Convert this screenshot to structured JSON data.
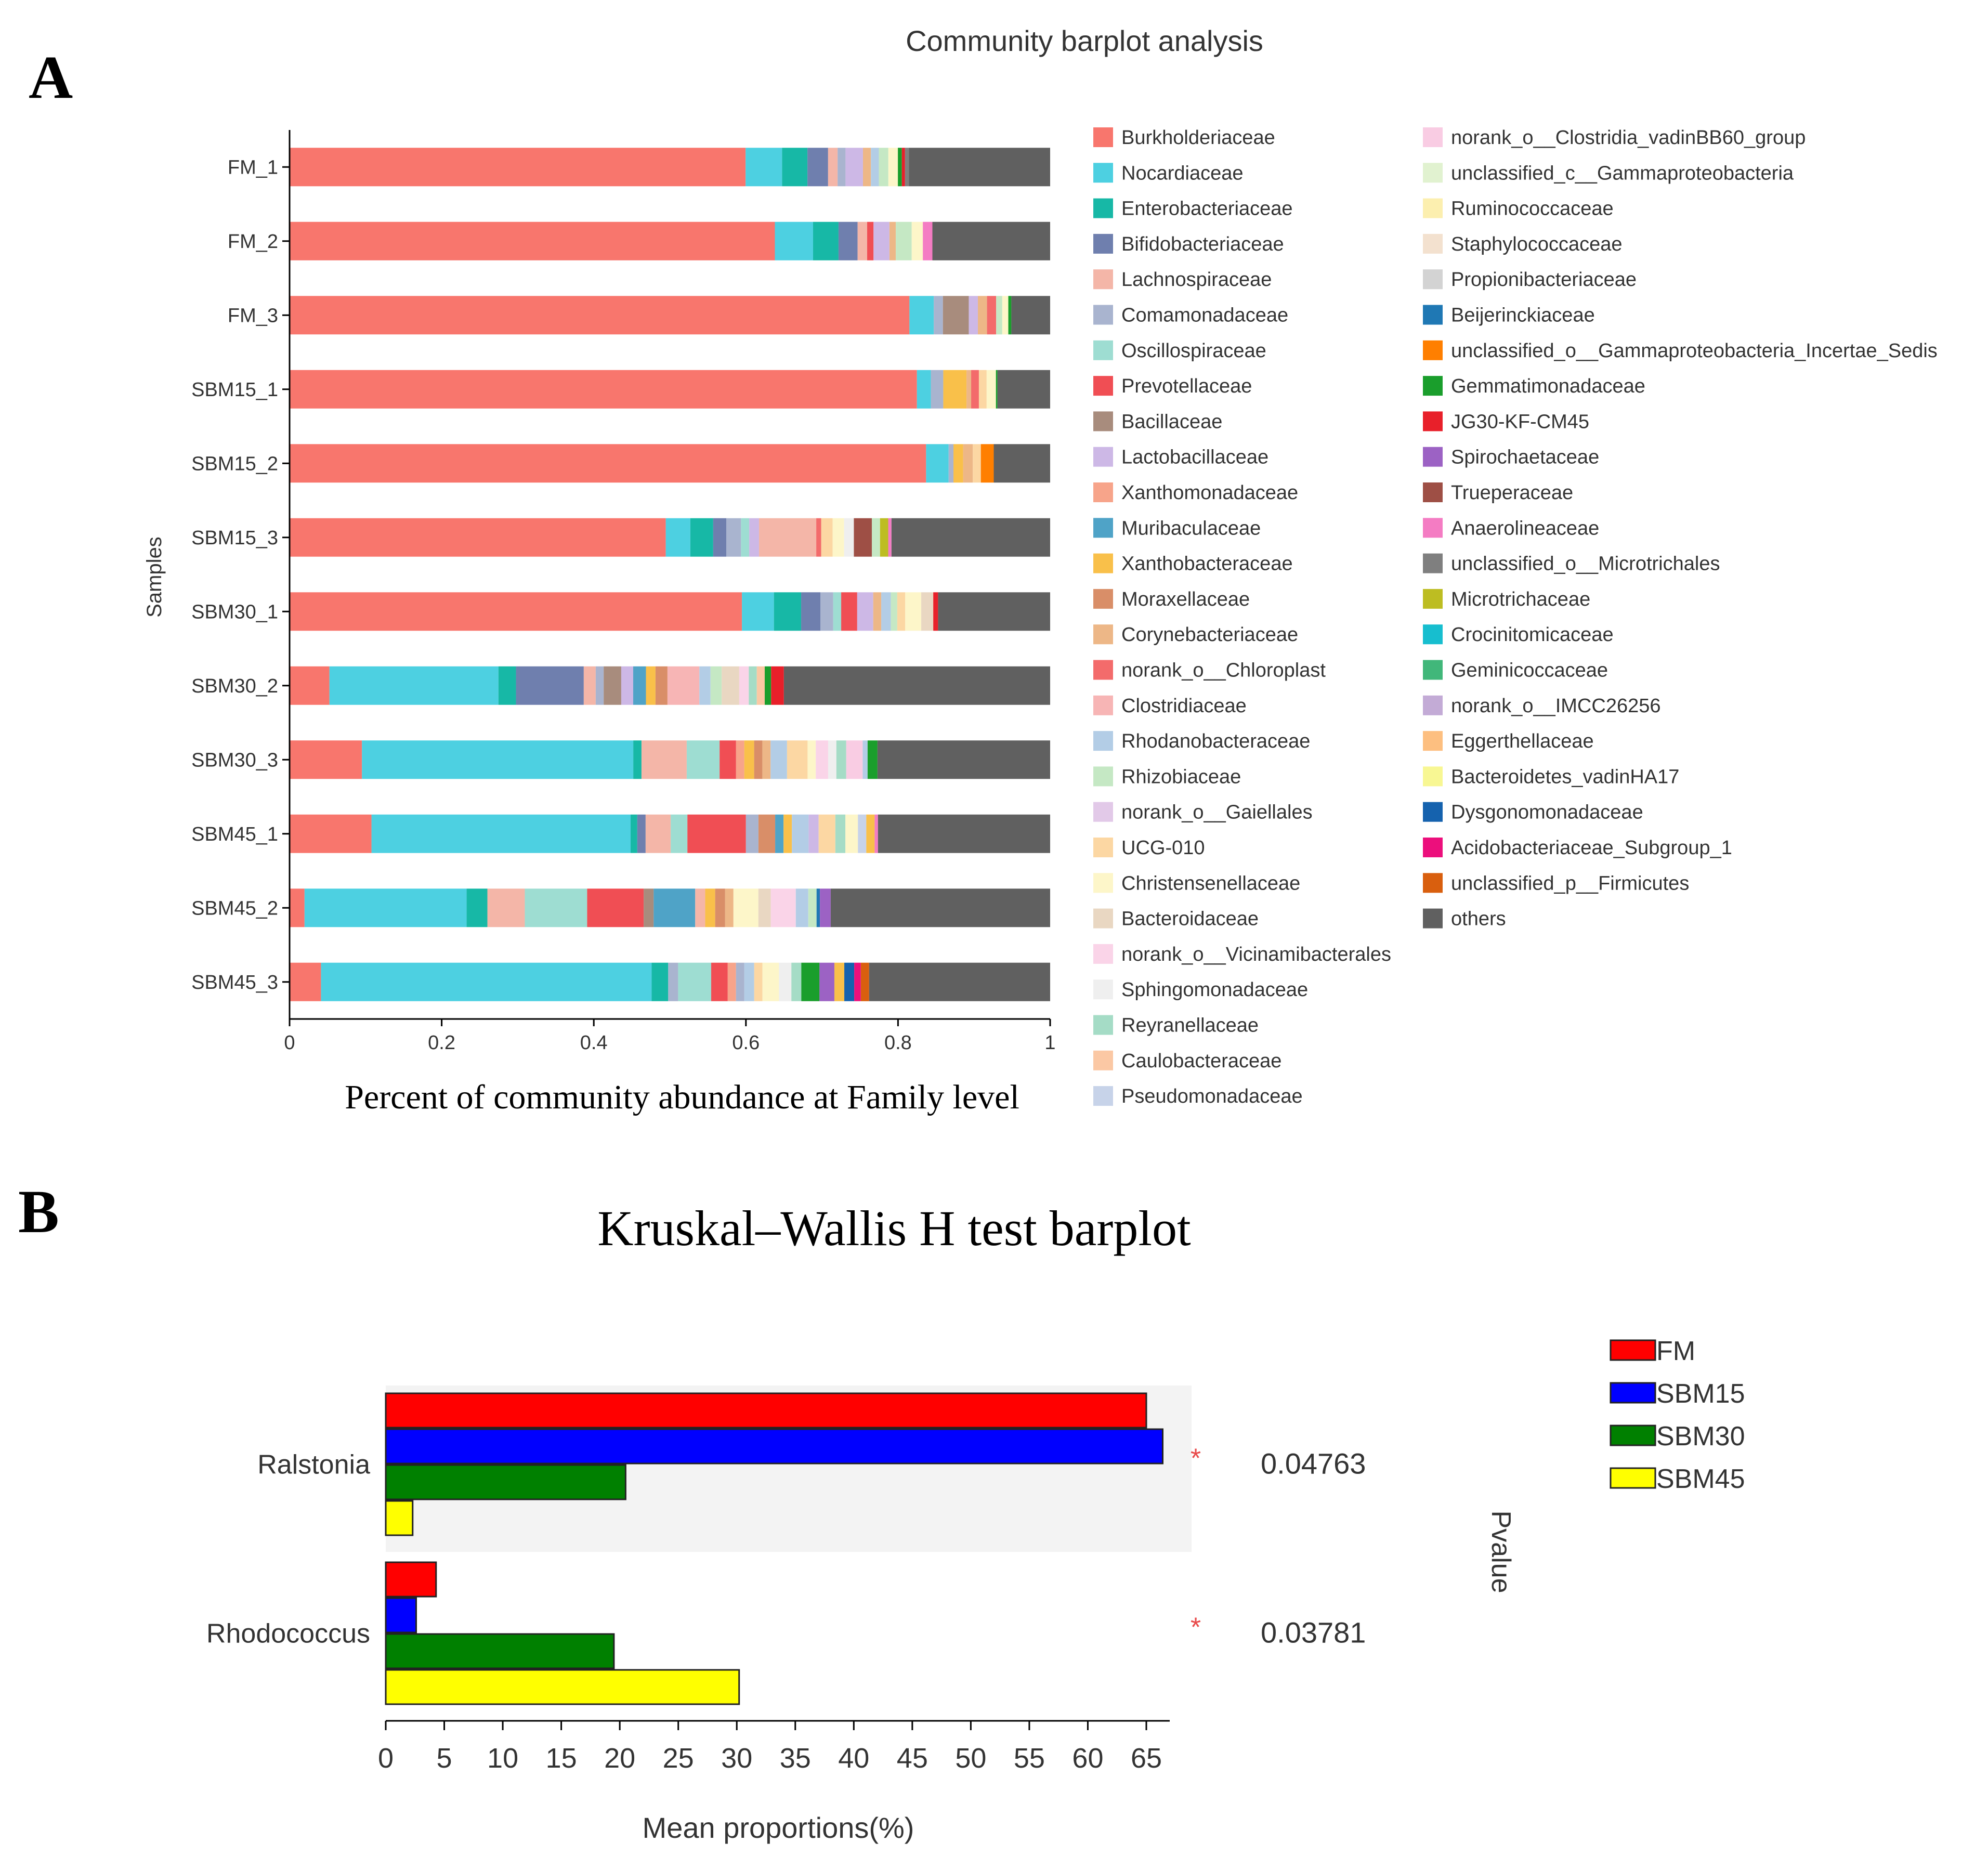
{
  "panel_a": {
    "letter": "A",
    "chart_data": {
      "type": "bar",
      "orientation": "horizontal",
      "stacked": true,
      "title": "Community barplot analysis",
      "xlabel": "Percent of community abundance at Family level",
      "ylabel": "Samples",
      "xlim": [
        0,
        1
      ],
      "xticks": [
        "0",
        "0.2",
        "0.4",
        "0.6",
        "0.8",
        "1"
      ],
      "categories": [
        "FM_1",
        "FM_2",
        "FM_3",
        "SBM15_1",
        "SBM15_2",
        "SBM15_3",
        "SBM30_1",
        "SBM30_2",
        "SBM30_3",
        "SBM45_1",
        "SBM45_2",
        "SBM45_3"
      ],
      "legend": [
        {
          "name": "Burkholderiaceae",
          "color": "#F8766D"
        },
        {
          "name": "Nocardiaceae",
          "color": "#4DD0E1"
        },
        {
          "name": "Enterobacteriaceae",
          "color": "#17B8A6"
        },
        {
          "name": "Bifidobacteriaceae",
          "color": "#6F7FAE"
        },
        {
          "name": "Lachnospiraceae",
          "color": "#F4B6A8"
        },
        {
          "name": "Comamonadaceae",
          "color": "#A9B4CF"
        },
        {
          "name": "Oscillospiraceae",
          "color": "#9EDDD2"
        },
        {
          "name": "Prevotellaceae",
          "color": "#F04E54"
        },
        {
          "name": "Bacillaceae",
          "color": "#A88C7D"
        },
        {
          "name": "Lactobacillaceae",
          "color": "#CDB8E6"
        },
        {
          "name": "Xanthomonadaceae",
          "color": "#F7A48A"
        },
        {
          "name": "Muribaculaceae",
          "color": "#4FA3C7"
        },
        {
          "name": "Xanthobacteraceae",
          "color": "#F9C04A"
        },
        {
          "name": "Moraxellaceae",
          "color": "#D98E68"
        },
        {
          "name": "Corynebacteriaceae",
          "color": "#EDB787"
        },
        {
          "name": "norank_o__Chloroplast",
          "color": "#F36B6B"
        },
        {
          "name": "Clostridiaceae",
          "color": "#F7B5B5"
        },
        {
          "name": "Rhodanobacteraceae",
          "color": "#B3CDE6"
        },
        {
          "name": "Rhizobiaceae",
          "color": "#C5E8C4"
        },
        {
          "name": "norank_o__Gaiellales",
          "color": "#E2C9E8"
        },
        {
          "name": "UCG-010",
          "color": "#FCD7A3"
        },
        {
          "name": "Christensenellaceae",
          "color": "#FDF6C9"
        },
        {
          "name": "Bacteroidaceae",
          "color": "#E9D7C2"
        },
        {
          "name": "norank_o__Vicinamibacterales",
          "color": "#FAD4E8"
        },
        {
          "name": "Sphingomonadaceae",
          "color": "#EFEFEF"
        },
        {
          "name": "Reyranellaceae",
          "color": "#A5DCC6"
        },
        {
          "name": "Caulobacteraceae",
          "color": "#FBC8A4"
        },
        {
          "name": "Pseudomonadaceae",
          "color": "#C7D3E9"
        },
        {
          "name": "norank_o__Clostridia_vadinBB60_group",
          "color": "#F9CCE3"
        },
        {
          "name": "unclassified_c__Gammaproteobacteria",
          "color": "#E1F2D0"
        },
        {
          "name": "Ruminococcaceae",
          "color": "#FCEFAF"
        },
        {
          "name": "Staphylococcaceae",
          "color": "#F3E1CF"
        },
        {
          "name": "Propionibacteriaceae",
          "color": "#D3D3D3"
        },
        {
          "name": "Beijerinckiaceae",
          "color": "#1F78B4"
        },
        {
          "name": "unclassified_o__Gammaproteobacteria_Incertae_Sedis",
          "color": "#FF7F00"
        },
        {
          "name": "Gemmatimonadaceae",
          "color": "#1A9E2C"
        },
        {
          "name": "JG30-KF-CM45",
          "color": "#E8202A"
        },
        {
          "name": "Spirochaetaceae",
          "color": "#9C62C4"
        },
        {
          "name": "Trueperaceae",
          "color": "#9E4F45"
        },
        {
          "name": "Anaerolineaceae",
          "color": "#F47CC3"
        },
        {
          "name": "unclassified_o__Microtrichales",
          "color": "#7F7F7F"
        },
        {
          "name": "Microtrichaceae",
          "color": "#BDBD22"
        },
        {
          "name": "Crocinitomicaceae",
          "color": "#17BECF"
        },
        {
          "name": "Geminicoccaceae",
          "color": "#41B77A"
        },
        {
          "name": "norank_o__IMCC26256",
          "color": "#C3ABD6"
        },
        {
          "name": "Eggerthellaceae",
          "color": "#FDBF80"
        },
        {
          "name": "Bacteroidetes_vadinHA17",
          "color": "#F8F793"
        },
        {
          "name": "Dysgonomonadaceae",
          "color": "#1562AE"
        },
        {
          "name": "Acidobacteriaceae_Subgroup_1",
          "color": "#EC0F7C"
        },
        {
          "name": "unclassified_p__Firmicutes",
          "color": "#D95F0E"
        },
        {
          "name": "others",
          "color": "#606060"
        }
      ],
      "stacks": [
        [
          [
            0,
            0.575
          ],
          [
            1,
            0.046
          ],
          [
            2,
            0.032
          ],
          [
            3,
            0.026
          ],
          [
            4,
            0.012
          ],
          [
            5,
            0.01
          ],
          [
            9,
            0.022
          ],
          [
            14,
            0.01
          ],
          [
            17,
            0.01
          ],
          [
            18,
            0.012
          ],
          [
            21,
            0.012
          ],
          [
            35,
            0.005
          ],
          [
            36,
            0.004
          ],
          [
            40,
            0.005
          ],
          [
            50,
            0.178
          ]
        ],
        [
          [
            0,
            0.61
          ],
          [
            1,
            0.048
          ],
          [
            2,
            0.032
          ],
          [
            3,
            0.024
          ],
          [
            4,
            0.012
          ],
          [
            7,
            0.008
          ],
          [
            9,
            0.02
          ],
          [
            14,
            0.008
          ],
          [
            18,
            0.02
          ],
          [
            21,
            0.014
          ],
          [
            39,
            0.012
          ],
          [
            50,
            0.148
          ]
        ],
        [
          [
            0,
            0.815
          ],
          [
            1,
            0.032
          ],
          [
            5,
            0.012
          ],
          [
            8,
            0.034
          ],
          [
            9,
            0.012
          ],
          [
            14,
            0.012
          ],
          [
            15,
            0.012
          ],
          [
            18,
            0.008
          ],
          [
            21,
            0.008
          ],
          [
            35,
            0.004
          ],
          [
            50,
            0.051
          ]
        ],
        [
          [
            0,
            0.81
          ],
          [
            1,
            0.018
          ],
          [
            5,
            0.016
          ],
          [
            12,
            0.03
          ],
          [
            14,
            0.006
          ],
          [
            15,
            0.01
          ],
          [
            20,
            0.01
          ],
          [
            21,
            0.012
          ],
          [
            35,
            0.002
          ],
          [
            50,
            0.068
          ]
        ],
        [
          [
            0,
            0.79
          ],
          [
            1,
            0.028
          ],
          [
            5,
            0.006
          ],
          [
            12,
            0.012
          ],
          [
            14,
            0.012
          ],
          [
            20,
            0.01
          ],
          [
            34,
            0.016
          ],
          [
            50,
            0.07
          ]
        ],
        [
          [
            0,
            0.46
          ],
          [
            1,
            0.03
          ],
          [
            2,
            0.028
          ],
          [
            3,
            0.016
          ],
          [
            5,
            0.018
          ],
          [
            6,
            0.01
          ],
          [
            9,
            0.012
          ],
          [
            4,
            0.07
          ],
          [
            15,
            0.006
          ],
          [
            20,
            0.014
          ],
          [
            21,
            0.014
          ],
          [
            24,
            0.012
          ],
          [
            38,
            0.022
          ],
          [
            18,
            0.01
          ],
          [
            41,
            0.01
          ],
          [
            39,
            0.004
          ],
          [
            50,
            0.194
          ]
        ],
        [
          [
            0,
            0.565
          ],
          [
            1,
            0.04
          ],
          [
            2,
            0.034
          ],
          [
            3,
            0.024
          ],
          [
            5,
            0.016
          ],
          [
            6,
            0.01
          ],
          [
            7,
            0.02
          ],
          [
            9,
            0.02
          ],
          [
            14,
            0.01
          ],
          [
            17,
            0.012
          ],
          [
            18,
            0.008
          ],
          [
            20,
            0.01
          ],
          [
            21,
            0.02
          ],
          [
            22,
            0.015
          ],
          [
            36,
            0.006
          ],
          [
            50,
            0.14
          ]
        ],
        [
          [
            0,
            0.05
          ],
          [
            1,
            0.212
          ],
          [
            2,
            0.022
          ],
          [
            3,
            0.085
          ],
          [
            4,
            0.015
          ],
          [
            5,
            0.01
          ],
          [
            8,
            0.022
          ],
          [
            9,
            0.015
          ],
          [
            11,
            0.016
          ],
          [
            12,
            0.012
          ],
          [
            13,
            0.015
          ],
          [
            16,
            0.04
          ],
          [
            17,
            0.014
          ],
          [
            18,
            0.014
          ],
          [
            22,
            0.022
          ],
          [
            23,
            0.012
          ],
          [
            25,
            0.01
          ],
          [
            26,
            0.01
          ],
          [
            35,
            0.008
          ],
          [
            36,
            0.016
          ],
          [
            50,
            0.334
          ]
        ],
        [
          [
            0,
            0.088
          ],
          [
            1,
            0.33
          ],
          [
            2,
            0.01
          ],
          [
            4,
            0.055
          ],
          [
            6,
            0.04
          ],
          [
            7,
            0.02
          ],
          [
            10,
            0.01
          ],
          [
            12,
            0.012
          ],
          [
            13,
            0.01
          ],
          [
            14,
            0.01
          ],
          [
            17,
            0.02
          ],
          [
            20,
            0.025
          ],
          [
            21,
            0.01
          ],
          [
            23,
            0.015
          ],
          [
            24,
            0.01
          ],
          [
            25,
            0.012
          ],
          [
            28,
            0.02
          ],
          [
            17,
            0.006
          ],
          [
            35,
            0.012
          ],
          [
            50,
            0.21
          ]
        ],
        [
          [
            0,
            0.098
          ],
          [
            1,
            0.31
          ],
          [
            2,
            0.008
          ],
          [
            3,
            0.01
          ],
          [
            4,
            0.03
          ],
          [
            6,
            0.02
          ],
          [
            7,
            0.07
          ],
          [
            5,
            0.015
          ],
          [
            13,
            0.02
          ],
          [
            11,
            0.01
          ],
          [
            12,
            0.01
          ],
          [
            17,
            0.02
          ],
          [
            9,
            0.012
          ],
          [
            20,
            0.02
          ],
          [
            25,
            0.012
          ],
          [
            21,
            0.015
          ],
          [
            27,
            0.01
          ],
          [
            12,
            0.01
          ],
          [
            39,
            0.004
          ],
          [
            50,
            0.206
          ]
        ],
        [
          [
            0,
            0.018
          ],
          [
            1,
            0.195
          ],
          [
            2,
            0.025
          ],
          [
            4,
            0.045
          ],
          [
            6,
            0.075
          ],
          [
            7,
            0.068
          ],
          [
            8,
            0.012
          ],
          [
            11,
            0.05
          ],
          [
            4,
            0.012
          ],
          [
            12,
            0.012
          ],
          [
            13,
            0.012
          ],
          [
            14,
            0.01
          ],
          [
            21,
            0.03
          ],
          [
            22,
            0.015
          ],
          [
            23,
            0.03
          ],
          [
            17,
            0.015
          ],
          [
            18,
            0.01
          ],
          [
            33,
            0.004
          ],
          [
            37,
            0.013
          ],
          [
            50,
            0.264
          ]
        ],
        [
          [
            0,
            0.038
          ],
          [
            1,
            0.4
          ],
          [
            2,
            0.02
          ],
          [
            5,
            0.012
          ],
          [
            6,
            0.04
          ],
          [
            7,
            0.02
          ],
          [
            10,
            0.01
          ],
          [
            5,
            0.01
          ],
          [
            17,
            0.012
          ],
          [
            20,
            0.01
          ],
          [
            21,
            0.02
          ],
          [
            24,
            0.015
          ],
          [
            25,
            0.012
          ],
          [
            35,
            0.022
          ],
          [
            37,
            0.018
          ],
          [
            12,
            0.012
          ],
          [
            47,
            0.012
          ],
          [
            48,
            0.008
          ],
          [
            49,
            0.01
          ],
          [
            50,
            0.219
          ]
        ]
      ]
    }
  },
  "panel_b": {
    "letter": "B",
    "chart_data": {
      "type": "bar",
      "orientation": "horizontal",
      "title": "Kruskal–Wallis H test barplot",
      "xlabel": "Mean proportions(%)",
      "pvalue_label": "Pvalue",
      "xlim": [
        0,
        67
      ],
      "xticks": [
        "0",
        "5",
        "10",
        "15",
        "20",
        "25",
        "30",
        "35",
        "40",
        "45",
        "50",
        "55",
        "60",
        "65"
      ],
      "categories": [
        "Ralstonia",
        "Rhodococcus"
      ],
      "pvalues": [
        "0.04763",
        "0.03781"
      ],
      "significance": [
        "*",
        "*"
      ],
      "series": [
        {
          "name": "FM",
          "color": "#FF0000",
          "values": [
            65.0,
            4.3
          ]
        },
        {
          "name": "SBM15",
          "color": "#0000FF",
          "values": [
            66.4,
            2.6
          ]
        },
        {
          "name": "SBM30",
          "color": "#008000",
          "values": [
            20.5,
            19.5
          ]
        },
        {
          "name": "SBM45",
          "color": "#FFFF00",
          "values": [
            2.3,
            30.2
          ]
        }
      ]
    }
  }
}
